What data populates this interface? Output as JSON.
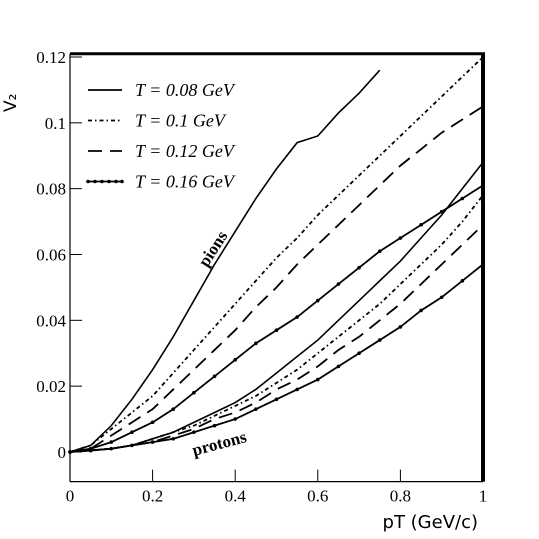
{
  "chart_data": {
    "type": "line",
    "y_label": "V₂",
    "x_label": "pT (GeV/c)",
    "annotations": [
      "pions",
      "protons"
    ],
    "x": [
      0,
      0.05,
      0.1,
      0.15,
      0.2,
      0.25,
      0.3,
      0.35,
      0.4,
      0.45,
      0.5,
      0.55,
      0.6,
      0.65,
      0.7,
      0.75,
      0.8,
      0.85,
      0.9,
      0.95,
      1
    ],
    "xlim": [
      0,
      1
    ],
    "ylim": [
      -0.009,
      0.121
    ],
    "xticks": [
      0,
      0.2,
      0.4,
      0.6,
      0.8,
      1
    ],
    "yticks": [
      0,
      0.02,
      0.04,
      0.06,
      0.08,
      0.1,
      0.12
    ],
    "series": [
      {
        "name": "T = 0.08 GeV",
        "color": "#000000",
        "dash": "solid",
        "values": [
          0,
          0.002,
          0.008,
          0.016,
          0.025,
          0.035,
          0.046,
          0.057,
          0.067,
          0.077,
          0.086,
          0.094,
          0.096,
          0.103,
          0.109,
          0.116,
          null,
          null,
          null,
          null,
          null
        ],
        "proton_values": [
          0,
          0.0005,
          0.001,
          0.002,
          0.004,
          0.006,
          0.009,
          0.012,
          0.015,
          0.019,
          0.024,
          0.029,
          0.034,
          0.04,
          0.046,
          0.052,
          0.058,
          0.065,
          0.072,
          0.08,
          0.088
        ]
      },
      {
        "name": "T = 0.1 GeV",
        "color": "#000000",
        "dash": "dashdot",
        "values": [
          0,
          0.002,
          0.007,
          0.012,
          0.017,
          0.024,
          0.031,
          0.038,
          0.045,
          0.052,
          0.059,
          0.065,
          0.072,
          0.078,
          0.084,
          0.09,
          0.096,
          0.102,
          0.108,
          0.114,
          0.12
        ],
        "proton_values": [
          0,
          0.0005,
          0.001,
          0.002,
          0.004,
          0.006,
          0.008,
          0.011,
          0.014,
          0.017,
          0.021,
          0.025,
          0.03,
          0.035,
          0.04,
          0.045,
          0.051,
          0.057,
          0.063,
          0.07,
          0.078
        ]
      },
      {
        "name": "T = 0.12 GeV",
        "color": "#000000",
        "dash": "dashed",
        "values": [
          0,
          0.001,
          0.005,
          0.009,
          0.013,
          0.019,
          0.025,
          0.031,
          0.037,
          0.044,
          0.05,
          0.057,
          0.063,
          0.069,
          0.075,
          0.081,
          0.087,
          0.092,
          0.097,
          0.101,
          0.105
        ],
        "proton_values": [
          0,
          0.0005,
          0.001,
          0.002,
          0.003,
          0.005,
          0.007,
          0.01,
          0.012,
          0.015,
          0.019,
          0.022,
          0.026,
          0.031,
          0.035,
          0.04,
          0.045,
          0.051,
          0.057,
          0.063,
          0.069
        ]
      },
      {
        "name": "T = 0.16 GeV",
        "color": "#000000",
        "dash": "marked",
        "values": [
          0,
          0.001,
          0.003,
          0.006,
          0.009,
          0.013,
          0.018,
          0.023,
          0.028,
          0.033,
          0.037,
          0.041,
          0.046,
          0.051,
          0.056,
          0.061,
          0.065,
          0.069,
          0.073,
          0.077,
          0.081
        ],
        "proton_values": [
          0,
          0.0004,
          0.001,
          0.002,
          0.003,
          0.004,
          0.006,
          0.008,
          0.01,
          0.013,
          0.016,
          0.019,
          0.022,
          0.026,
          0.03,
          0.034,
          0.038,
          0.043,
          0.047,
          0.052,
          0.057
        ]
      }
    ]
  }
}
